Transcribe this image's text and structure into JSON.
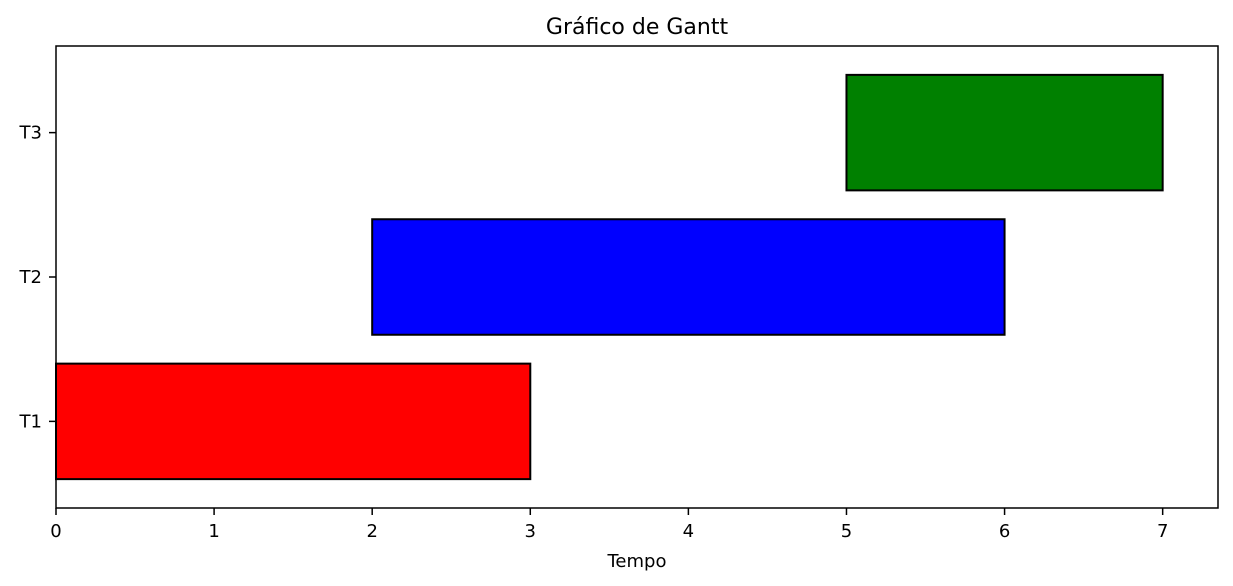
{
  "chart_data": {
    "type": "bar",
    "orientation": "horizontal",
    "title": "Gráfico de Gantt",
    "xlabel": "Tempo",
    "ylabel": "",
    "xlim": [
      0,
      7.35
    ],
    "xticks": [
      "0",
      "1",
      "2",
      "3",
      "4",
      "5",
      "6",
      "7"
    ],
    "grid": false,
    "tasks": [
      {
        "label": "T1",
        "start": 0,
        "end": 3,
        "color": "#ff0000"
      },
      {
        "label": "T2",
        "start": 2,
        "end": 6,
        "color": "#0000ff"
      },
      {
        "label": "T3",
        "start": 5,
        "end": 7,
        "color": "#008000"
      }
    ]
  }
}
